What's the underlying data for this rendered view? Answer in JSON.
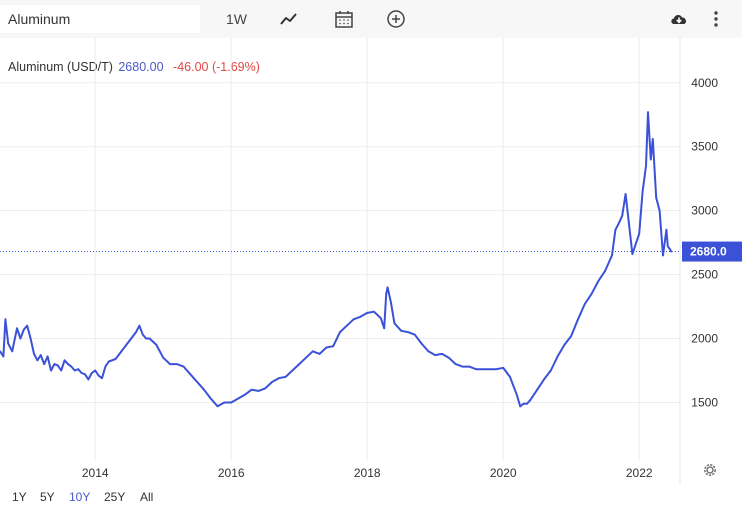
{
  "toolbar": {
    "search_value": "Aluminum",
    "interval_label": "1W",
    "icons": [
      "line-chart-icon",
      "calendar-icon",
      "add-circle-icon",
      "cloud-download-icon",
      "more-vertical-icon"
    ]
  },
  "legend": {
    "name": "Aluminum (USD/T)",
    "last": "2680.00",
    "change": "-46.00 (-1.69%)"
  },
  "colors": {
    "series": "#3b52d8",
    "change_negative": "#e04848",
    "grid": "#ececec",
    "active_range": "#4c59c8"
  },
  "ranges": [
    {
      "label": "1Y",
      "active": false
    },
    {
      "label": "5Y",
      "active": false
    },
    {
      "label": "10Y",
      "active": true
    },
    {
      "label": "25Y",
      "active": false
    },
    {
      "label": "All",
      "active": false
    }
  ],
  "chart_data": {
    "type": "line",
    "title": "Aluminum (USD/T)",
    "xlabel": "",
    "ylabel": "",
    "x_ticks": [
      "2014",
      "2016",
      "2018",
      "2020",
      "2022"
    ],
    "y_ticks": [
      1500,
      2000,
      2500,
      3000,
      3500,
      4000
    ],
    "ylim": [
      1050,
      4350
    ],
    "xlim": [
      2012.6,
      2022.6
    ],
    "grid": true,
    "y_axis_side": "right",
    "last_value_label": "2680.0",
    "last_value": 2680,
    "series": [
      {
        "x": [
          2012.6,
          2012.65,
          2012.68,
          2012.72,
          2012.78,
          2012.85,
          2012.9,
          2012.95,
          2013.0,
          2013.05,
          2013.1,
          2013.15,
          2013.2,
          2013.25,
          2013.3,
          2013.35,
          2013.4,
          2013.45,
          2013.5,
          2013.55,
          2013.6,
          2013.65,
          2013.7,
          2013.75,
          2013.8,
          2013.85,
          2013.9,
          2013.95,
          2014.0,
          2014.05,
          2014.1,
          2014.15,
          2014.2,
          2014.3,
          2014.4,
          2014.5,
          2014.6,
          2014.65,
          2014.7,
          2014.75,
          2014.8,
          2014.9,
          2015.0,
          2015.1,
          2015.2,
          2015.3,
          2015.4,
          2015.5,
          2015.6,
          2015.7,
          2015.8,
          2015.9,
          2016.0,
          2016.1,
          2016.2,
          2016.3,
          2016.4,
          2016.5,
          2016.6,
          2016.7,
          2016.8,
          2016.9,
          2017.0,
          2017.1,
          2017.2,
          2017.3,
          2017.4,
          2017.5,
          2017.6,
          2017.7,
          2017.8,
          2017.9,
          2018.0,
          2018.1,
          2018.2,
          2018.25,
          2018.28,
          2018.3,
          2018.35,
          2018.4,
          2018.5,
          2018.6,
          2018.7,
          2018.8,
          2018.9,
          2019.0,
          2019.1,
          2019.2,
          2019.3,
          2019.4,
          2019.5,
          2019.6,
          2019.7,
          2019.8,
          2019.9,
          2020.0,
          2020.1,
          2020.2,
          2020.25,
          2020.3,
          2020.35,
          2020.4,
          2020.5,
          2020.6,
          2020.7,
          2020.8,
          2020.9,
          2021.0,
          2021.1,
          2021.2,
          2021.3,
          2021.4,
          2021.5,
          2021.6,
          2021.65,
          2021.7,
          2021.75,
          2021.8,
          2021.9,
          2022.0,
          2022.05,
          2022.1,
          2022.13,
          2022.17,
          2022.2,
          2022.25,
          2022.3,
          2022.35,
          2022.4,
          2022.42,
          2022.45,
          2022.47
        ],
        "values": [
          1900,
          1860,
          2150,
          1960,
          1900,
          2080,
          2000,
          2070,
          2100,
          2000,
          1880,
          1830,
          1870,
          1800,
          1860,
          1750,
          1800,
          1790,
          1750,
          1830,
          1800,
          1780,
          1750,
          1760,
          1730,
          1720,
          1680,
          1730,
          1750,
          1710,
          1690,
          1780,
          1820,
          1840,
          1910,
          1980,
          2050,
          2100,
          2030,
          2000,
          2000,
          1950,
          1850,
          1800,
          1800,
          1780,
          1720,
          1660,
          1600,
          1530,
          1470,
          1500,
          1500,
          1530,
          1560,
          1600,
          1590,
          1610,
          1660,
          1690,
          1700,
          1750,
          1800,
          1850,
          1900,
          1880,
          1930,
          1940,
          2050,
          2100,
          2150,
          2170,
          2200,
          2210,
          2160,
          2080,
          2350,
          2400,
          2280,
          2120,
          2060,
          2050,
          2030,
          1960,
          1900,
          1870,
          1880,
          1850,
          1800,
          1780,
          1780,
          1760,
          1760,
          1760,
          1760,
          1770,
          1700,
          1560,
          1470,
          1490,
          1490,
          1520,
          1600,
          1680,
          1750,
          1860,
          1950,
          2020,
          2150,
          2270,
          2350,
          2450,
          2530,
          2650,
          2850,
          2900,
          2960,
          3130,
          2660,
          2820,
          3150,
          3350,
          3770,
          3400,
          3560,
          3100,
          3000,
          2650,
          2850,
          2720,
          2700,
          2680
        ]
      }
    ]
  }
}
